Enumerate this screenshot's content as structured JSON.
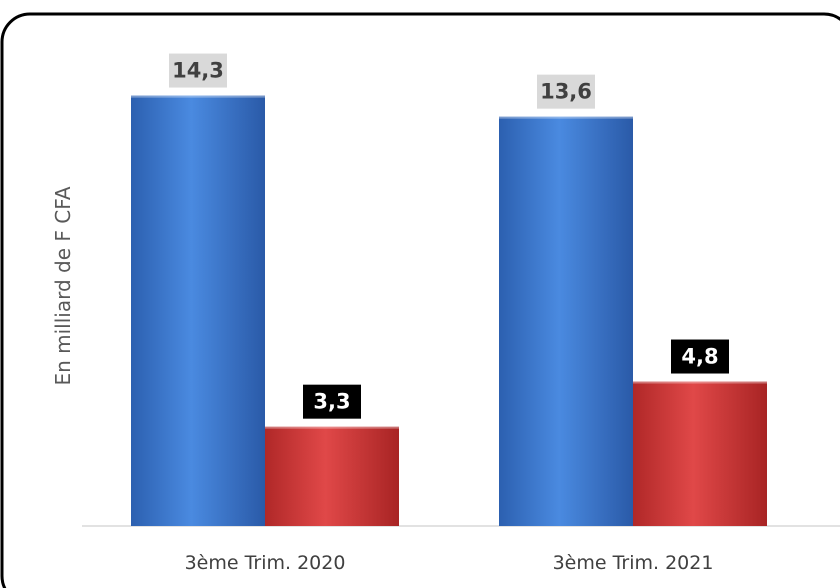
{
  "chart_data": {
    "type": "bar",
    "title": "",
    "xlabel": "",
    "ylabel": "En milliard de F CFA",
    "categories": [
      "3ème Trim. 2020",
      "3ème Trim. 2021"
    ],
    "series": [
      {
        "values": [
          14.3,
          13.6
        ],
        "color": "#3a78d0",
        "label_bg": "#d9d9d9",
        "label_color": "#404040"
      },
      {
        "values": [
          3.3,
          4.8
        ],
        "color": "#d63a3a",
        "label_bg": "#000000",
        "label_color": "#ffffff"
      }
    ],
    "data_labels": [
      [
        "14,3",
        "13,6"
      ],
      [
        "3,3",
        "4,8"
      ]
    ],
    "ylim": [
      0,
      16
    ],
    "grid": false,
    "legend": "none"
  }
}
